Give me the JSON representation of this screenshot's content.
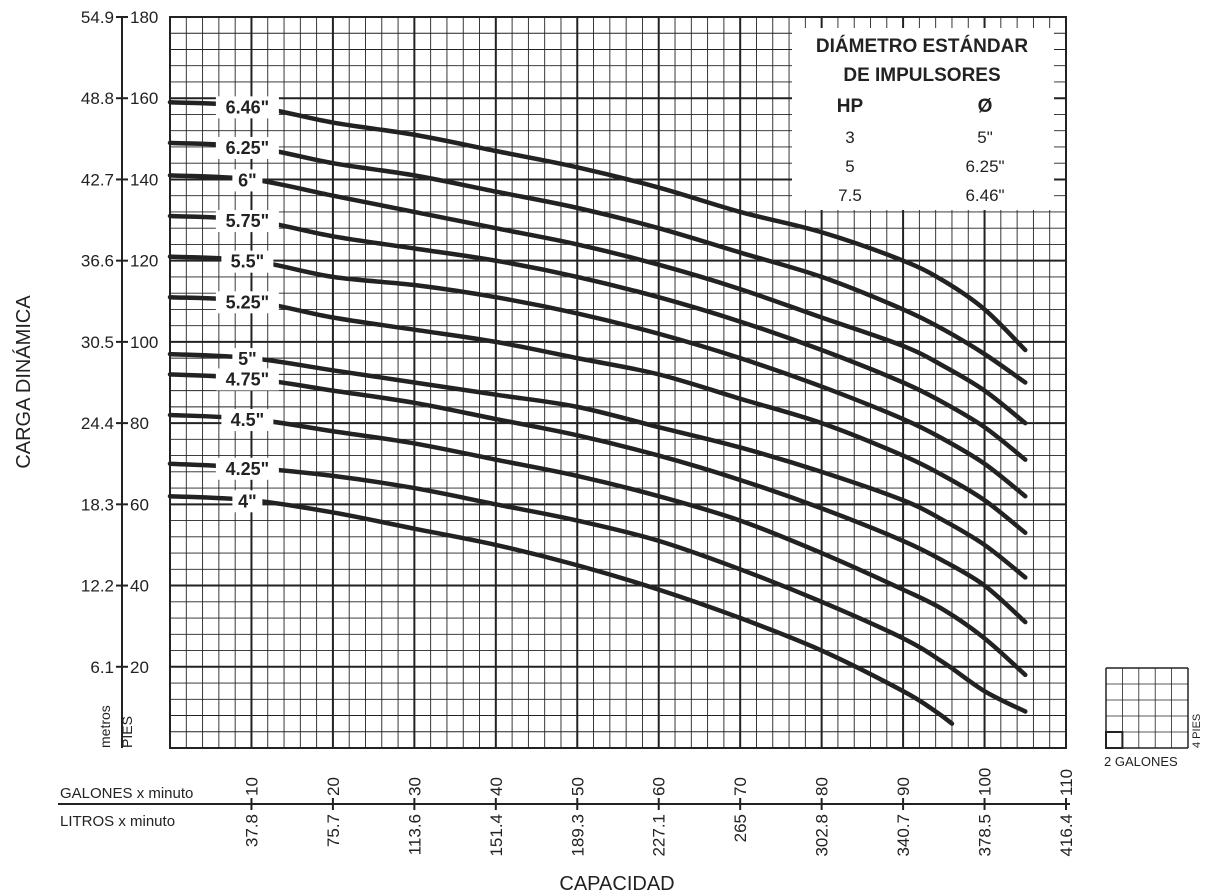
{
  "chart_data": {
    "type": "line",
    "ylabel": "CARGA DINÁMICA",
    "xlabel": "CAPACIDAD",
    "y_unit_metric": "metros",
    "y_unit_imperial": "PIES",
    "x_unit_gallons": "GALONES x minuto",
    "x_unit_liters": "LITROS x minuto",
    "ylim": [
      0,
      180
    ],
    "xlim": [
      0,
      110
    ],
    "y_ticks": [
      {
        "pies": "180",
        "metros": "54.9",
        "value": 180
      },
      {
        "pies": "160",
        "metros": "48.8",
        "value": 160
      },
      {
        "pies": "140",
        "metros": "42.7",
        "value": 140
      },
      {
        "pies": "120",
        "metros": "36.6",
        "value": 120
      },
      {
        "pies": "100",
        "metros": "30.5",
        "value": 100
      },
      {
        "pies": "80",
        "metros": "24.4",
        "value": 80
      },
      {
        "pies": "60",
        "metros": "18.3",
        "value": 60
      },
      {
        "pies": "40",
        "metros": "12.2",
        "value": 40
      },
      {
        "pies": "20",
        "metros": "6.1",
        "value": 20
      }
    ],
    "x_ticks": [
      {
        "galones": "10",
        "litros": "37.8",
        "value": 10
      },
      {
        "galones": "20",
        "litros": "75.7",
        "value": 20
      },
      {
        "galones": "30",
        "litros": "113.6",
        "value": 30
      },
      {
        "galones": "40",
        "litros": "151.4",
        "value": 40
      },
      {
        "galones": "50",
        "litros": "189.3",
        "value": 50
      },
      {
        "galones": "60",
        "litros": "227.1",
        "value": 60
      },
      {
        "galones": "70",
        "litros": "265",
        "value": 70
      },
      {
        "galones": "80",
        "litros": "302.8",
        "value": 80
      },
      {
        "galones": "90",
        "litros": "340.7",
        "value": 90
      },
      {
        "galones": "100",
        "litros": "378.5",
        "value": 100
      },
      {
        "galones": "110",
        "litros": "416.4",
        "value": 110
      }
    ],
    "grid": true,
    "grid_minor_x": 2,
    "grid_minor_y": 4,
    "series": [
      {
        "name": "6.46\"",
        "points": [
          [
            0,
            159
          ],
          [
            10,
            158
          ],
          [
            20,
            154
          ],
          [
            30,
            151
          ],
          [
            40,
            147
          ],
          [
            50,
            143
          ],
          [
            60,
            138
          ],
          [
            70,
            132
          ],
          [
            80,
            127
          ],
          [
            90,
            120
          ],
          [
            95,
            115
          ],
          [
            100,
            108
          ],
          [
            105,
            98
          ]
        ]
      },
      {
        "name": "6.25\"",
        "points": [
          [
            0,
            149
          ],
          [
            10,
            148
          ],
          [
            20,
            144
          ],
          [
            30,
            141
          ],
          [
            40,
            137
          ],
          [
            50,
            133
          ],
          [
            60,
            128
          ],
          [
            70,
            122
          ],
          [
            80,
            116
          ],
          [
            90,
            108
          ],
          [
            95,
            103
          ],
          [
            100,
            97
          ],
          [
            105,
            90
          ]
        ]
      },
      {
        "name": "6\"",
        "points": [
          [
            0,
            141
          ],
          [
            10,
            140
          ],
          [
            20,
            136
          ],
          [
            30,
            132
          ],
          [
            40,
            128
          ],
          [
            50,
            124
          ],
          [
            60,
            119
          ],
          [
            70,
            113
          ],
          [
            80,
            106
          ],
          [
            90,
            99
          ],
          [
            95,
            94
          ],
          [
            100,
            88
          ],
          [
            105,
            80
          ]
        ]
      },
      {
        "name": "5.75\"",
        "points": [
          [
            0,
            131
          ],
          [
            10,
            130
          ],
          [
            20,
            126
          ],
          [
            30,
            123
          ],
          [
            40,
            120
          ],
          [
            50,
            116
          ],
          [
            60,
            111
          ],
          [
            70,
            105
          ],
          [
            80,
            98
          ],
          [
            90,
            90
          ],
          [
            95,
            85
          ],
          [
            100,
            79
          ],
          [
            105,
            71
          ]
        ]
      },
      {
        "name": "5.5\"",
        "points": [
          [
            0,
            121
          ],
          [
            10,
            120
          ],
          [
            20,
            116
          ],
          [
            30,
            114
          ],
          [
            40,
            111
          ],
          [
            50,
            107
          ],
          [
            60,
            102
          ],
          [
            70,
            96
          ],
          [
            80,
            89
          ],
          [
            90,
            81
          ],
          [
            95,
            76
          ],
          [
            100,
            70
          ],
          [
            105,
            62
          ]
        ]
      },
      {
        "name": "5.25\"",
        "points": [
          [
            0,
            111
          ],
          [
            10,
            110
          ],
          [
            20,
            106
          ],
          [
            30,
            103
          ],
          [
            40,
            100
          ],
          [
            50,
            96
          ],
          [
            60,
            92
          ],
          [
            70,
            86
          ],
          [
            80,
            80
          ],
          [
            90,
            72
          ],
          [
            95,
            67
          ],
          [
            100,
            61
          ],
          [
            105,
            53
          ]
        ]
      },
      {
        "name": "5\"",
        "points": [
          [
            0,
            97
          ],
          [
            10,
            96
          ],
          [
            20,
            93
          ],
          [
            30,
            90
          ],
          [
            40,
            87
          ],
          [
            50,
            84
          ],
          [
            60,
            79
          ],
          [
            70,
            74
          ],
          [
            80,
            68
          ],
          [
            90,
            61
          ],
          [
            95,
            56
          ],
          [
            100,
            50
          ],
          [
            105,
            42
          ]
        ]
      },
      {
        "name": "4.75\"",
        "points": [
          [
            0,
            92
          ],
          [
            10,
            91
          ],
          [
            20,
            88
          ],
          [
            30,
            85
          ],
          [
            40,
            81
          ],
          [
            50,
            77
          ],
          [
            60,
            72
          ],
          [
            70,
            66
          ],
          [
            80,
            59
          ],
          [
            90,
            51
          ],
          [
            95,
            46
          ],
          [
            100,
            40
          ],
          [
            105,
            31
          ]
        ]
      },
      {
        "name": "4.5\"",
        "points": [
          [
            0,
            82
          ],
          [
            10,
            81
          ],
          [
            20,
            78
          ],
          [
            30,
            75
          ],
          [
            40,
            71
          ],
          [
            50,
            67
          ],
          [
            60,
            62
          ],
          [
            70,
            56
          ],
          [
            80,
            48
          ],
          [
            90,
            39
          ],
          [
            95,
            34
          ],
          [
            100,
            27
          ],
          [
            105,
            18
          ]
        ]
      },
      {
        "name": "4.25\"",
        "points": [
          [
            0,
            70
          ],
          [
            10,
            69
          ],
          [
            20,
            67
          ],
          [
            30,
            64
          ],
          [
            40,
            60
          ],
          [
            50,
            56
          ],
          [
            60,
            51
          ],
          [
            70,
            44
          ],
          [
            80,
            36
          ],
          [
            90,
            27
          ],
          [
            95,
            21
          ],
          [
            100,
            14
          ],
          [
            105,
            9
          ]
        ]
      },
      {
        "name": "4\"",
        "points": [
          [
            0,
            62
          ],
          [
            10,
            61
          ],
          [
            20,
            58
          ],
          [
            30,
            54
          ],
          [
            40,
            50
          ],
          [
            50,
            45
          ],
          [
            60,
            39
          ],
          [
            70,
            32
          ],
          [
            80,
            24
          ],
          [
            90,
            14
          ],
          [
            94,
            9
          ],
          [
            96,
            6
          ]
        ]
      }
    ],
    "legend_table": {
      "title_line1": "DIÁMETRO ESTÁNDAR",
      "title_line2": "DE IMPULSORES",
      "col_hp": "HP",
      "col_diam": "Ø",
      "rows": [
        {
          "hp": "3",
          "diam": "5\""
        },
        {
          "hp": "5",
          "diam": "6.25\""
        },
        {
          "hp": "7.5",
          "diam": "6.46\""
        }
      ],
      "placement": "top-right"
    },
    "grid_key": {
      "x_label": "2 GALONES",
      "y_label": "4 PIES"
    }
  }
}
